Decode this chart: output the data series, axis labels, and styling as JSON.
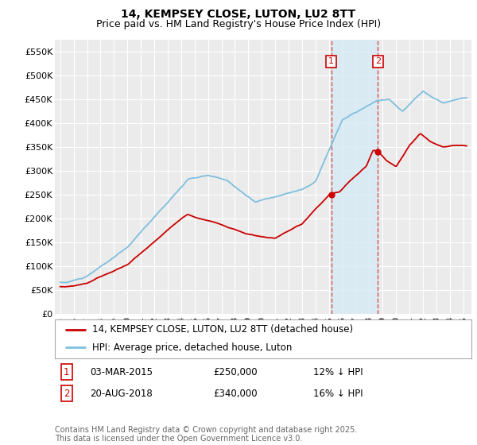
{
  "title": "14, KEMPSEY CLOSE, LUTON, LU2 8TT",
  "subtitle": "Price paid vs. HM Land Registry's House Price Index (HPI)",
  "ylim": [
    0,
    575000
  ],
  "yticks": [
    0,
    50000,
    100000,
    150000,
    200000,
    250000,
    300000,
    350000,
    400000,
    450000,
    500000,
    550000
  ],
  "ytick_labels": [
    "£0",
    "£50K",
    "£100K",
    "£150K",
    "£200K",
    "£250K",
    "£300K",
    "£350K",
    "£400K",
    "£450K",
    "£500K",
    "£550K"
  ],
  "background_color": "#ffffff",
  "plot_bg_color": "#ebebeb",
  "grid_color": "#ffffff",
  "hpi_color": "#7fbfdf",
  "price_color": "#cc0000",
  "sale1_date_num": 2015.17,
  "sale2_date_num": 2018.64,
  "sale1_price": 250000,
  "sale2_price": 340000,
  "shade_color": "#d8eaf5",
  "legend_label_price": "14, KEMPSEY CLOSE, LUTON, LU2 8TT (detached house)",
  "legend_label_hpi": "HPI: Average price, detached house, Luton",
  "footer": "Contains HM Land Registry data © Crown copyright and database right 2025.\nThis data is licensed under the Open Government Licence v3.0.",
  "title_fontsize": 10,
  "subtitle_fontsize": 9,
  "tick_fontsize": 8,
  "legend_fontsize": 8.5,
  "annot_fontsize": 8.5,
  "footer_fontsize": 7
}
